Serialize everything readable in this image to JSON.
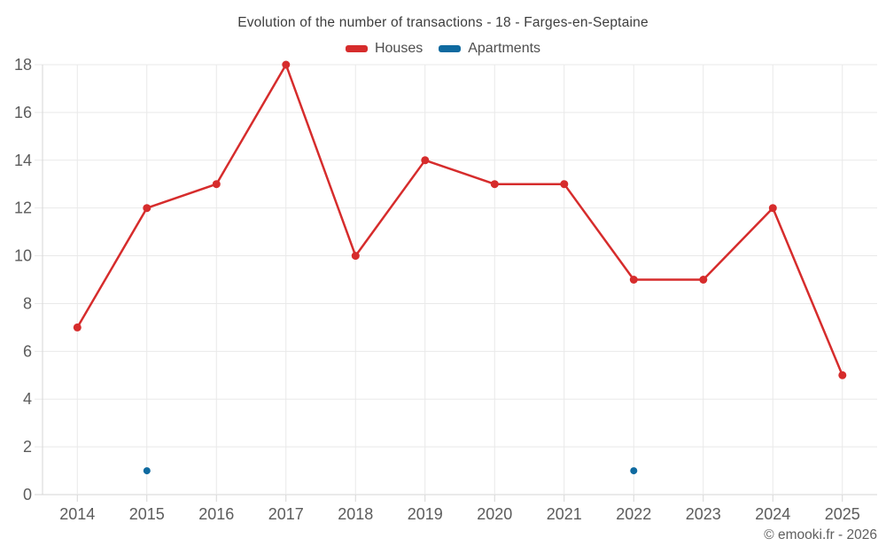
{
  "title": "Evolution of the number of transactions - 18 - Farges-en-Septaine",
  "footer": {
    "text": "© emooki.fr - 2026"
  },
  "colors": {
    "houses": "#d62c2c",
    "apartments": "#0f6aa0",
    "grid_line": "#e9e9e9",
    "axis_line": "#d6d6d6",
    "axis_label": "#5c5c5c",
    "title_text": "#3d3d3d",
    "legend_text": "#4e4e4e",
    "background": "#ffffff"
  },
  "legend": {
    "items": [
      {
        "label": "Houses",
        "color": "#d62c2c"
      },
      {
        "label": "Apartments",
        "color": "#0f6aa0"
      }
    ]
  },
  "chart_data": {
    "type": "line",
    "title": "Evolution of the number of transactions - 18 - Farges-en-Septaine",
    "x": [
      "2014",
      "2015",
      "2016",
      "2017",
      "2018",
      "2019",
      "2020",
      "2021",
      "2022",
      "2023",
      "2024",
      "2025"
    ],
    "series": [
      {
        "name": "Houses",
        "color": "#d62c2c",
        "style": "line-with-points",
        "values": [
          7,
          12,
          13,
          18,
          10,
          14,
          13,
          13,
          9,
          9,
          12,
          5
        ]
      },
      {
        "name": "Apartments",
        "color": "#0f6aa0",
        "style": "points",
        "values": [
          null,
          1,
          null,
          null,
          null,
          null,
          null,
          null,
          1,
          null,
          null,
          null
        ]
      }
    ],
    "xlabel": "",
    "ylabel": "",
    "ylim": [
      0,
      18
    ],
    "ytick_step": 2,
    "yticks": [
      0,
      2,
      4,
      6,
      8,
      10,
      12,
      14,
      16,
      18
    ],
    "grid": true,
    "legend_position": "top"
  }
}
